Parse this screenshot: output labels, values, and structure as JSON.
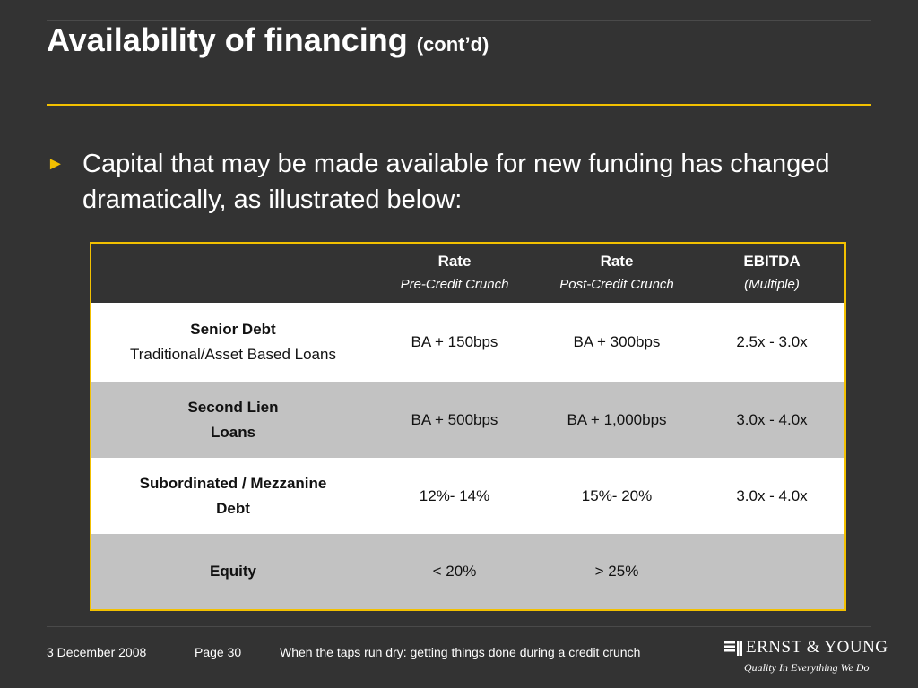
{
  "slide": {
    "title": "Availability of financing",
    "title_suffix": "(cont’d)",
    "bullet_marker": "►",
    "bullet_text": "Capital that may be made available for new funding has changed dramatically, as illustrated below:"
  },
  "table": {
    "headers": [
      {
        "label": "",
        "sub": ""
      },
      {
        "label": "Rate",
        "sub": "Pre-Credit Crunch"
      },
      {
        "label": "Rate",
        "sub": "Post-Credit Crunch"
      },
      {
        "label": "EBITDA",
        "sub": "(Multiple)"
      }
    ],
    "rows": [
      {
        "label_bold": "Senior Debt",
        "label_normal": "Traditional/Asset Based Loans",
        "pre": "BA + 150bps",
        "post": "BA + 300bps",
        "ebitda": "2.5x - 3.0x"
      },
      {
        "label_bold": "Second Lien",
        "label_normal": "Loans",
        "pre": "BA + 500bps",
        "post": "BA + 1,000bps",
        "ebitda": "3.0x - 4.0x"
      },
      {
        "label_bold": "Subordinated / Mezzanine",
        "label_normal": "Debt",
        "pre": "12%- 14%",
        "post": "15%- 20%",
        "ebitda": "3.0x - 4.0x"
      },
      {
        "label_bold": "Equity",
        "label_normal": "",
        "pre": "< 20%",
        "post": "> 25%",
        "ebitda": ""
      }
    ]
  },
  "footer": {
    "date": "3 December 2008",
    "page": "Page 30",
    "caption": "When the taps run dry: getting things done during a credit crunch",
    "logo_brand": "ERNST & YOUNG",
    "logo_tagline": "Quality In Everything We Do"
  },
  "colors": {
    "background": "#333333",
    "accent_gold": "#f2c000",
    "row_white": "#ffffff",
    "row_grey": "#c2c2c2"
  }
}
